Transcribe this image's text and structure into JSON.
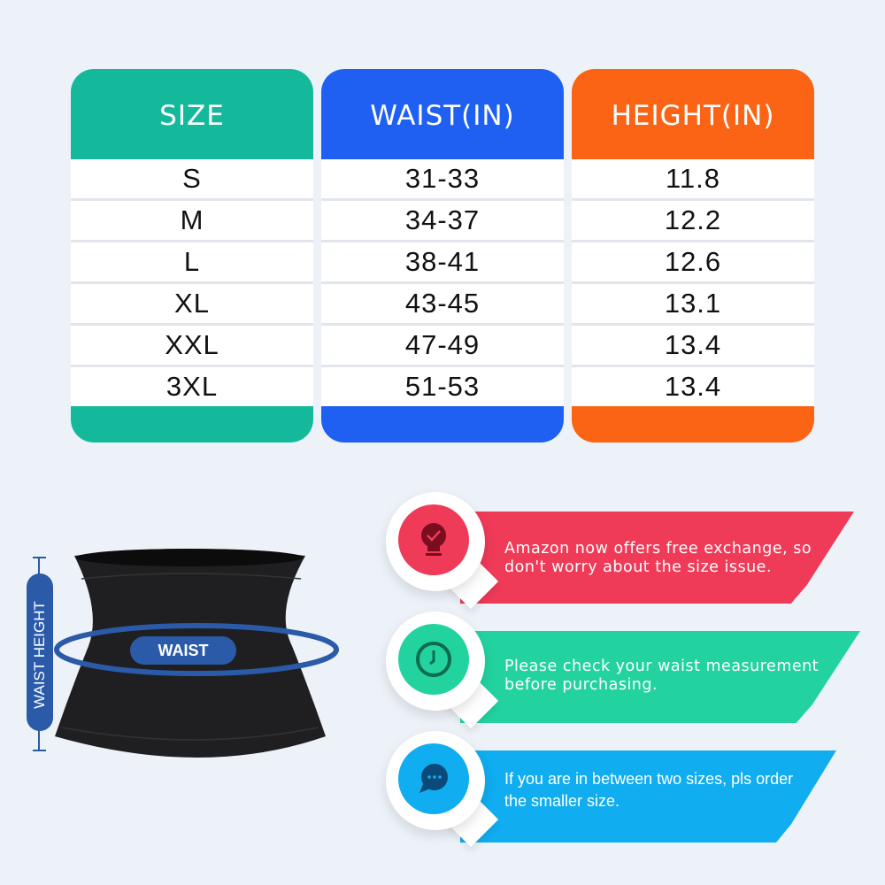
{
  "size_table": {
    "columns": [
      {
        "header": "SIZE",
        "color": "#14b99b",
        "values": [
          "S",
          "M",
          "L",
          "XL",
          "XXL",
          "3XL"
        ]
      },
      {
        "header": "WAIST(IN)",
        "color": "#1f60f2",
        "values": [
          "31-33",
          "34-37",
          "38-41",
          "43-45",
          "47-49",
          "51-53"
        ]
      },
      {
        "header": "HEIGHT(IN)",
        "color": "#fb6414",
        "values": [
          "11.8",
          "12.2",
          "12.6",
          "13.1",
          "13.4",
          "13.4"
        ]
      }
    ]
  },
  "product": {
    "waist_label": "WAIST",
    "waist_height_label": "WAIST HEIGHT",
    "accent": "#2a5aa8"
  },
  "tips": [
    {
      "icon": "lightbulb-check-icon",
      "color": "#ef3a58",
      "text1": "Amazon now offers free exchange, so",
      "text2": "don't worry about the size issue."
    },
    {
      "icon": "clock-icon",
      "color": "#22d3a0",
      "text1": "Please check your waist measurement",
      "text2": "before purchasing."
    },
    {
      "icon": "chat-bubble-icon",
      "color": "#10adf0",
      "text1": "If you are in between two sizes, pls order",
      "text2": "the smaller size."
    }
  ]
}
